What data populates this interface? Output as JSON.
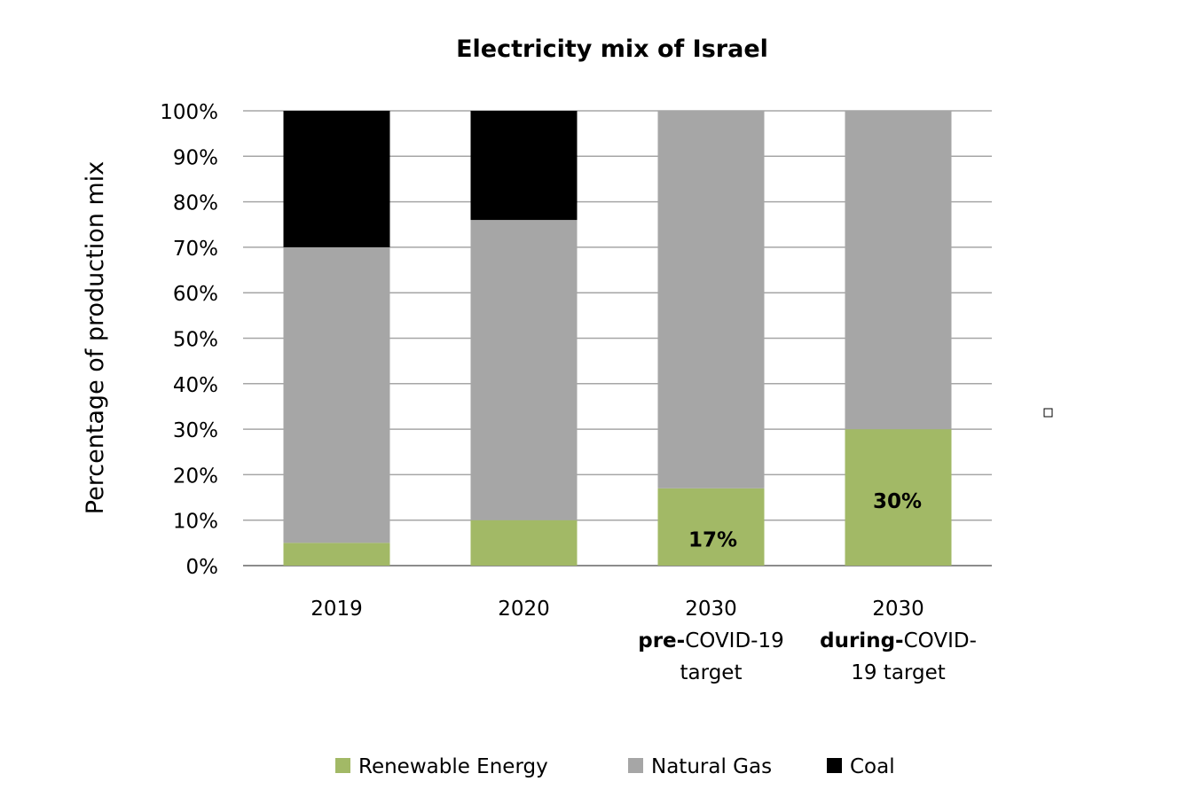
{
  "chart_data": {
    "type": "bar",
    "stacked": true,
    "title": "Electricity mix of Israel",
    "ylabel": "Percentage of production mix",
    "xlabel": "",
    "ylim": [
      0,
      100
    ],
    "yticks": [
      "0%",
      "10%",
      "20%",
      "30%",
      "40%",
      "50%",
      "60%",
      "70%",
      "80%",
      "90%",
      "100%"
    ],
    "grid": true,
    "legend_position": "bottom",
    "categories": [
      {
        "lines": [
          [
            {
              "text": "2019",
              "bold": false
            }
          ]
        ]
      },
      {
        "lines": [
          [
            {
              "text": "2020",
              "bold": false
            }
          ]
        ]
      },
      {
        "lines": [
          [
            {
              "text": "2030",
              "bold": false
            }
          ],
          [
            {
              "text": "pre-",
              "bold": true
            },
            {
              "text": "COVID-19",
              "bold": false
            }
          ],
          [
            {
              "text": "target",
              "bold": false
            }
          ]
        ]
      },
      {
        "lines": [
          [
            {
              "text": "2030",
              "bold": false
            }
          ],
          [
            {
              "text": "during-",
              "bold": true
            },
            {
              "text": "COVID-",
              "bold": false
            }
          ],
          [
            {
              "text": "19 target",
              "bold": false
            }
          ]
        ]
      }
    ],
    "series": [
      {
        "name": "Renewable Energy",
        "color": "#A2B966",
        "values": [
          5,
          10,
          17,
          30
        ],
        "data_labels": [
          null,
          null,
          "17%",
          "30%"
        ]
      },
      {
        "name": "Natural Gas",
        "color": "#A6A6A6",
        "values": [
          65,
          66,
          83,
          70
        ],
        "data_labels": [
          null,
          null,
          null,
          null
        ]
      },
      {
        "name": "Coal",
        "color": "#000000",
        "values": [
          30,
          24,
          0,
          0
        ],
        "data_labels": [
          null,
          null,
          null,
          null
        ]
      }
    ]
  }
}
